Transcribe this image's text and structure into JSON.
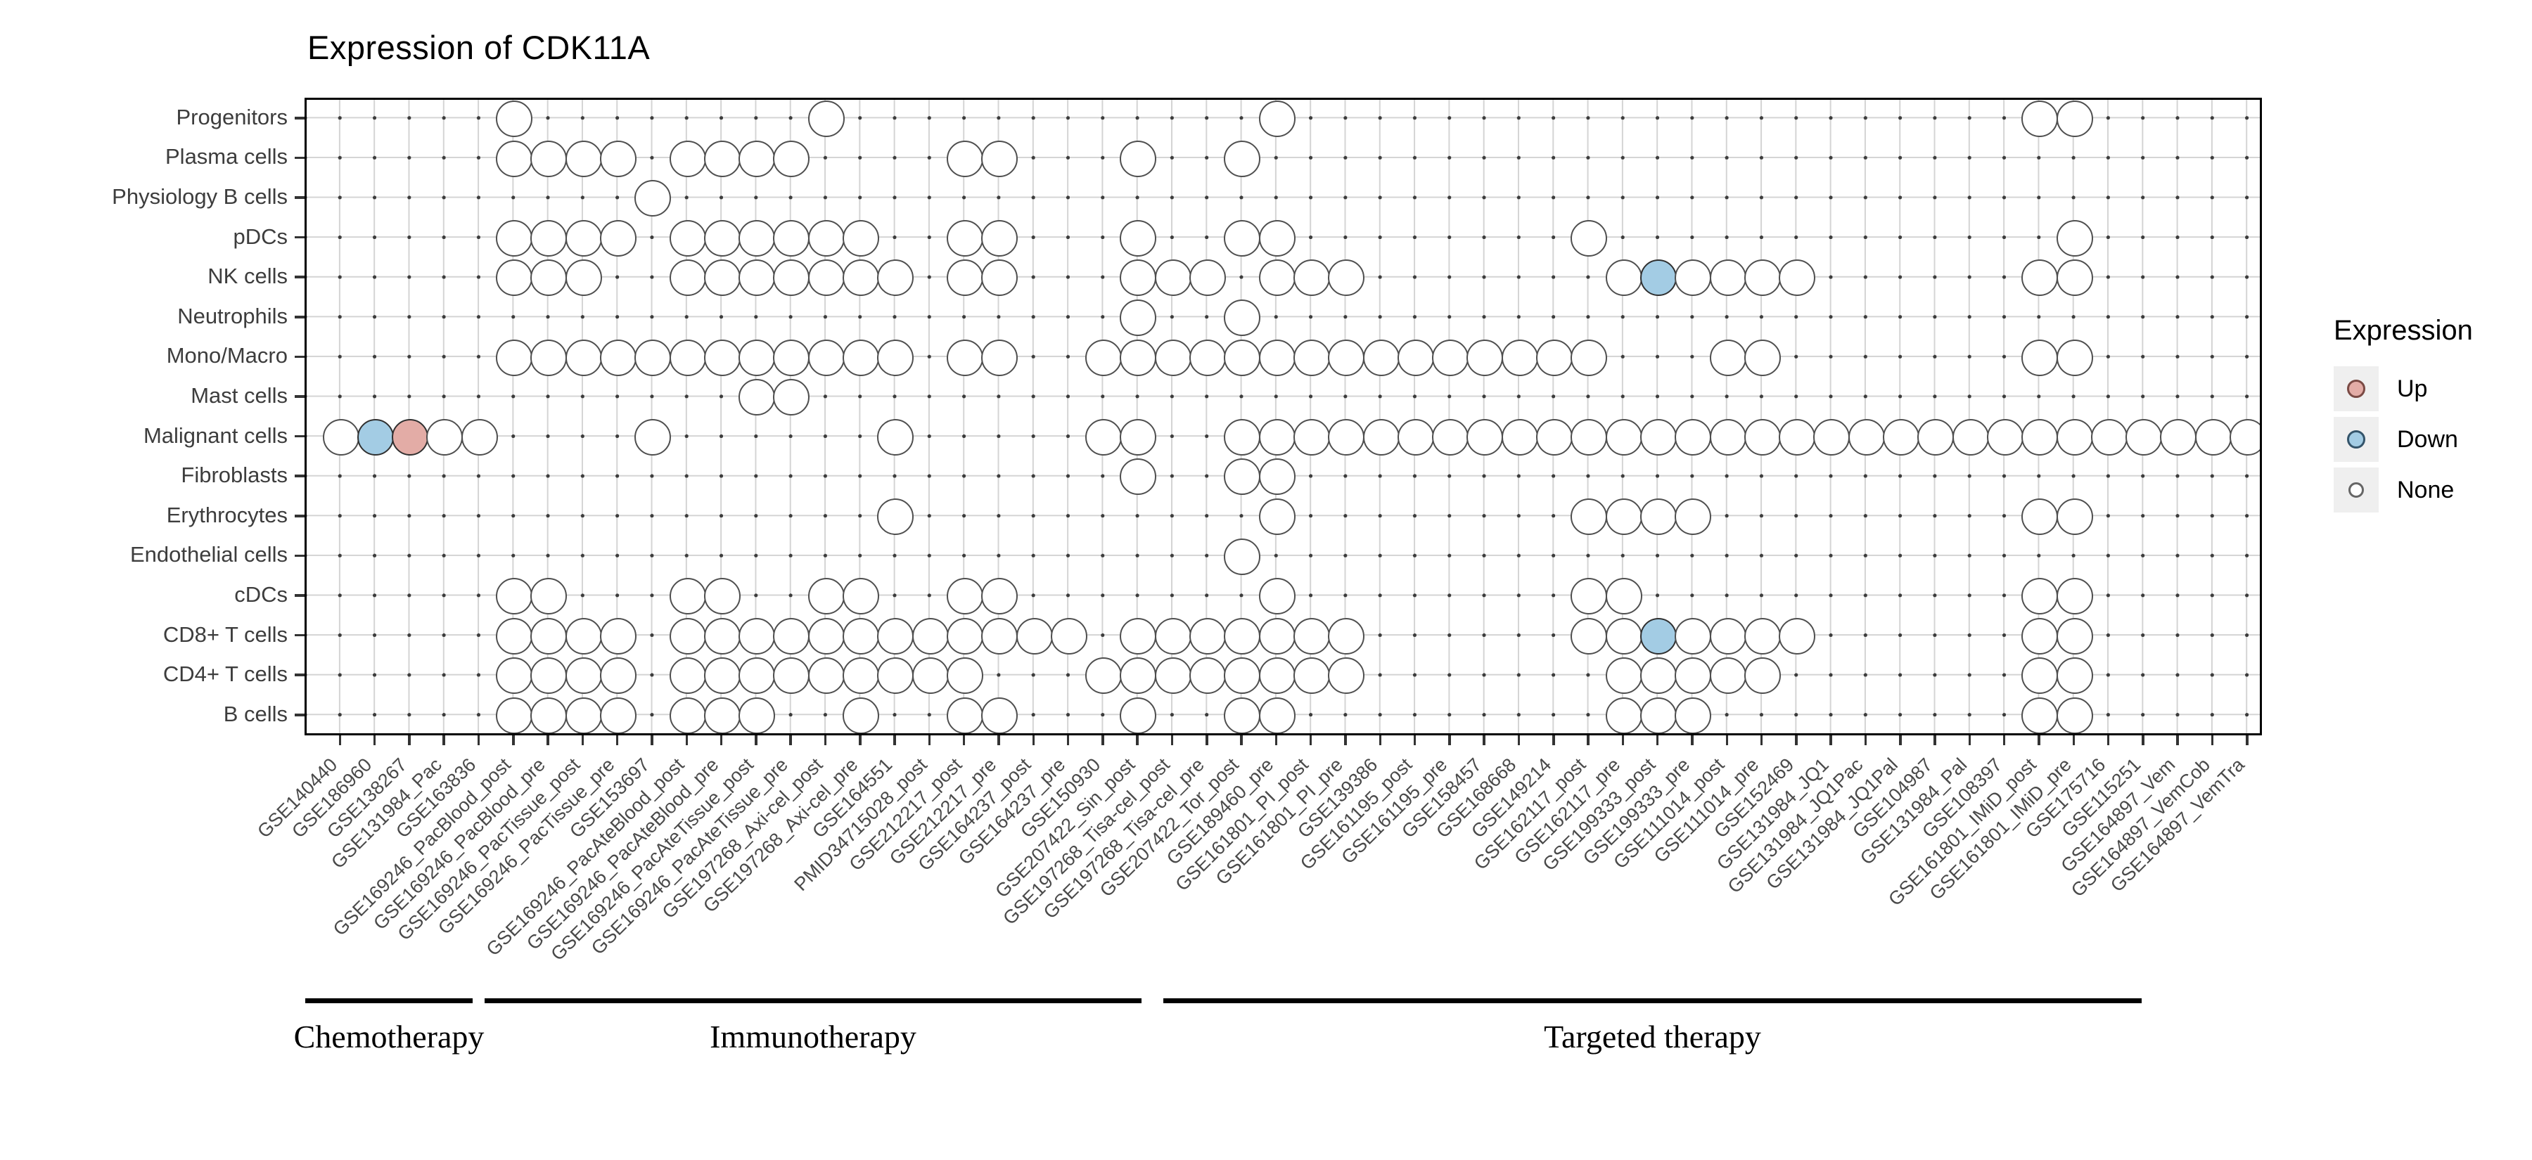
{
  "title": "Expression of CDK11A",
  "legend": {
    "title": "Expression",
    "items": [
      {
        "label": "Up",
        "color": "#e3aca6",
        "border": "#7a4a44",
        "size": 26
      },
      {
        "label": "Down",
        "color": "#a3cce4",
        "border": "#34546a",
        "size": 26
      },
      {
        "label": "None",
        "color": "#ffffff",
        "border": "#666666",
        "size": 22
      }
    ]
  },
  "chart_data": {
    "type": "heatmap",
    "subtype": "dot-matrix (rows = cell types, columns = datasets, dot = tested; color = expression change)",
    "title": "Expression of CDK11A",
    "rows": [
      "Progenitors",
      "Plasma cells",
      "Physiology B cells",
      "pDCs",
      "NK cells",
      "Neutrophils",
      "Mono/Macro",
      "Mast cells",
      "Malignant cells",
      "Fibroblasts",
      "Erythrocytes",
      "Endothelial cells",
      "cDCs",
      "CD8+ T cells",
      "CD4+ T cells",
      "B cells"
    ],
    "columns": [
      "GSE140440",
      "GSE186960",
      "GSE138267",
      "GSE131984_Pac",
      "GSE163836",
      "GSE169246_PacBlood_post",
      "GSE169246_PacBlood_pre",
      "GSE169246_PacTissue_post",
      "GSE169246_PacTissue_pre",
      "GSE153697",
      "GSE169246_PacAteBlood_post",
      "GSE169246_PacAteBlood_pre",
      "GSE169246_PacAteTissue_post",
      "GSE169246_PacAteTissue_pre",
      "GSE197268_Axi-cel_post",
      "GSE197268_Axi-cel_pre",
      "GSE164551",
      "PMID34715028_post",
      "GSE212217_post",
      "GSE212217_pre",
      "GSE164237_post",
      "GSE164237_pre",
      "GSE150930",
      "GSE207422_Sin_post",
      "GSE197268_Tisa-cel_post",
      "GSE197268_Tisa-cel_pre",
      "GSE207422_Tor_post",
      "GSE189460_pre",
      "GSE161801_PI_post",
      "GSE161801_PI_pre",
      "GSE139386",
      "GSE161195_post",
      "GSE161195_pre",
      "GSE158457",
      "GSE168668",
      "GSE149214",
      "GSE162117_post",
      "GSE162117_pre",
      "GSE199333_post",
      "GSE199333_pre",
      "GSE111014_post",
      "GSE111014_pre",
      "GSE152469",
      "GSE131984_JQ1",
      "GSE131984_JQ1Pac",
      "GSE131984_JQ1Pal",
      "GSE104987",
      "GSE131984_Pal",
      "GSE108397",
      "GSE161801_IMiD_post",
      "GSE161801_IMiD_pre",
      "GSE175716",
      "GSE115251",
      "GSE164897_Vem",
      "GSE164897_VemCob",
      "GSE164897_VemTra"
    ],
    "points": {
      "Progenitors": [
        6,
        15,
        28,
        50,
        51
      ],
      "Plasma cells": [
        6,
        7,
        8,
        9,
        11,
        12,
        13,
        14,
        19,
        20,
        24,
        27
      ],
      "Physiology B cells": [
        10
      ],
      "pDCs": [
        6,
        7,
        8,
        9,
        11,
        12,
        13,
        14,
        15,
        16,
        19,
        20,
        24,
        27,
        28,
        37,
        51
      ],
      "NK cells": [
        6,
        7,
        8,
        11,
        12,
        13,
        14,
        15,
        16,
        17,
        19,
        20,
        24,
        25,
        26,
        28,
        29,
        30,
        38,
        39,
        40,
        41,
        42,
        43,
        50,
        51
      ],
      "Neutrophils": [
        24,
        27
      ],
      "Mono/Macro": [
        6,
        7,
        8,
        9,
        10,
        11,
        12,
        13,
        14,
        15,
        16,
        17,
        19,
        20,
        23,
        24,
        25,
        26,
        27,
        28,
        29,
        30,
        31,
        32,
        33,
        34,
        35,
        36,
        37,
        41,
        42,
        50,
        51
      ],
      "Mast cells": [
        13,
        14
      ],
      "Malignant cells": [
        1,
        2,
        3,
        4,
        5,
        10,
        17,
        23,
        24,
        27,
        28,
        29,
        30,
        31,
        32,
        33,
        34,
        35,
        36,
        37,
        38,
        39,
        40,
        41,
        42,
        43,
        44,
        45,
        46,
        47,
        48,
        49,
        50,
        51,
        52,
        53,
        54,
        55,
        56
      ],
      "Fibroblasts": [
        24,
        27,
        28
      ],
      "Erythrocytes": [
        17,
        28,
        37,
        38,
        39,
        40,
        50,
        51
      ],
      "Endothelial cells": [
        27
      ],
      "cDCs": [
        6,
        7,
        11,
        12,
        15,
        16,
        19,
        20,
        28,
        37,
        38,
        50,
        51
      ],
      "CD8+ T cells": [
        6,
        7,
        8,
        9,
        11,
        12,
        13,
        14,
        15,
        16,
        17,
        18,
        19,
        20,
        21,
        22,
        24,
        25,
        26,
        27,
        28,
        29,
        30,
        37,
        38,
        39,
        40,
        41,
        42,
        43,
        50,
        51
      ],
      "CD4+ T cells": [
        6,
        7,
        8,
        9,
        11,
        12,
        13,
        14,
        15,
        16,
        17,
        18,
        19,
        23,
        24,
        25,
        26,
        27,
        28,
        29,
        30,
        38,
        39,
        40,
        41,
        42,
        50,
        51
      ],
      "B cells": [
        6,
        7,
        8,
        9,
        11,
        12,
        13,
        16,
        19,
        20,
        24,
        27,
        28,
        38,
        39,
        40,
        50,
        51
      ]
    },
    "colored_points": [
      {
        "row": "Malignant cells",
        "col": 2,
        "state": "Down"
      },
      {
        "row": "Malignant cells",
        "col": 3,
        "state": "Up"
      },
      {
        "row": "NK cells",
        "col": 39,
        "state": "Down"
      },
      {
        "row": "CD8+ T cells",
        "col": 39,
        "state": "Down"
      }
    ],
    "legend_entries": [
      "Up",
      "Down",
      "None"
    ],
    "groups": [
      {
        "label": "Chemotherapy",
        "bar_x": [
          434,
          672
        ]
      },
      {
        "label": "Immunotherapy",
        "bar_x": [
          689,
          1623
        ]
      },
      {
        "label": "Targeted therapy",
        "bar_x": [
          1654,
          3045
        ]
      }
    ],
    "colors": {
      "up": "#e3aca6",
      "down": "#a3cce4",
      "none": "#ffffff",
      "stroke": "#4f4f4f"
    },
    "grid": {
      "rows": 16,
      "columns": 56,
      "gridlines": true,
      "legend_position": "right"
    }
  },
  "layout_note_visible_values_only": true
}
